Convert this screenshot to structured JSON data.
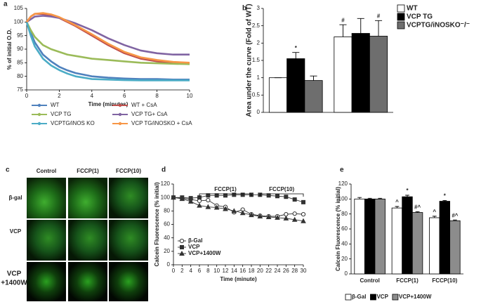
{
  "chart_data": [
    {
      "type": "line",
      "label": "a",
      "x_label": "Time (minutes)",
      "y_label": "% of initial O.D.",
      "x": [
        0,
        0.25,
        0.5,
        1,
        1.5,
        2,
        2.5,
        3,
        4,
        5,
        6,
        7,
        8,
        9,
        10
      ],
      "series": [
        {
          "name": "WT",
          "color": "#4f81bd",
          "values": [
            100,
            96,
            92.5,
            88,
            85.5,
            83.5,
            82.2,
            81.2,
            80,
            79.5,
            79.2,
            79,
            79,
            78.8,
            78.8
          ]
        },
        {
          "name": "WT + CsA",
          "color": "#c0504d",
          "values": [
            100,
            102,
            103,
            103,
            102.5,
            101.5,
            100,
            98.5,
            95,
            91.5,
            88.5,
            86.5,
            85.5,
            85,
            84.5
          ]
        },
        {
          "name": "VCP TG",
          "color": "#9bbb59",
          "values": [
            100,
            97,
            94.5,
            91.5,
            90,
            89,
            88,
            87.5,
            86.5,
            86,
            85.5,
            85,
            84.8,
            84.6,
            84.5
          ]
        },
        {
          "name": "VCP TG+ CsA",
          "color": "#8064a2",
          "values": [
            100,
            101,
            102,
            102.3,
            102,
            101.5,
            100.5,
            99.5,
            97,
            94,
            91.5,
            89.5,
            88.5,
            88,
            88
          ]
        },
        {
          "name": "VCPTG/iNOS KO",
          "color": "#4bacc6",
          "values": [
            100,
            95,
            91,
            86.5,
            84,
            82.3,
            81,
            80,
            79,
            78.8,
            78.6,
            78.5,
            78.5,
            78.5,
            78.5
          ]
        },
        {
          "name": "VCP TG/iNOSKO + CsA",
          "color": "#f79646",
          "values": [
            100,
            102,
            103,
            103.3,
            102.8,
            101.8,
            100.3,
            98.8,
            95.5,
            92,
            89,
            87,
            86,
            85.3,
            85
          ]
        }
      ],
      "xlim": [
        0,
        10
      ],
      "xticks": [
        0,
        2,
        4,
        6,
        8,
        10
      ],
      "ylim": [
        75,
        105
      ],
      "yticks": [
        75,
        80,
        85,
        90,
        95,
        100,
        105
      ],
      "legend": "bottom",
      "grid": false
    },
    {
      "type": "bar",
      "label": "b",
      "y_label": "Area under the curve (Fold of WT)",
      "categories": [
        null,
        null
      ],
      "series": [
        {
          "name": "WT",
          "color": "#ffffff",
          "values": [
            1,
            2.18
          ],
          "errors": [
            0,
            0.35
          ],
          "annotations": [
            null,
            "#"
          ]
        },
        {
          "name": "VCP TG",
          "color": "#000000",
          "values": [
            1.55,
            2.28
          ],
          "errors": [
            0.18,
            0.43
          ],
          "annotations": [
            "*",
            null
          ]
        },
        {
          "name": "VCPTG/iNOSKO⁻/⁻",
          "color": "#6e6e6e",
          "values": [
            0.92,
            2.2
          ],
          "errors": [
            0.13,
            0.45
          ],
          "annotations": [
            null,
            "#"
          ]
        }
      ],
      "ylim": [
        0,
        3
      ],
      "yticks": [
        0,
        0.5,
        1,
        1.5,
        2,
        2.5,
        3
      ],
      "legend": "top-right",
      "grid": false
    },
    {
      "type": "line",
      "label": "d",
      "x_label": "Time (minute)",
      "y_label": "Calcein Fluorescence (% initial)",
      "x": [
        0,
        2,
        4,
        6,
        8,
        10,
        12,
        14,
        16,
        18,
        20,
        22,
        24,
        26,
        28,
        30
      ],
      "series": [
        {
          "name": "β-Gal",
          "color": "#333333",
          "marker": "circle-open",
          "values": [
            100,
            99,
            97,
            95,
            96,
            88,
            86,
            78,
            82,
            75,
            73,
            72,
            72,
            75,
            76,
            75
          ]
        },
        {
          "name": "VCP",
          "color": "#333333",
          "marker": "square",
          "values": [
            100,
            100,
            99,
            100,
            103,
            103,
            103,
            104,
            104,
            104,
            104,
            103,
            102,
            101,
            97,
            93
          ]
        },
        {
          "name": "VCP+1400W",
          "color": "#333333",
          "marker": "triangle",
          "values": [
            100,
            98,
            94,
            88,
            86,
            85,
            83,
            80,
            77,
            74,
            72,
            71,
            70,
            69,
            67,
            65
          ]
        }
      ],
      "annotations": [
        {
          "text": "FCCP(1)",
          "x_range": [
            6,
            18
          ]
        },
        {
          "text": "FCCP(10)",
          "x_range": [
            20,
            30
          ]
        }
      ],
      "xlim": [
        0,
        30
      ],
      "xticks": [
        0,
        2,
        4,
        6,
        8,
        10,
        12,
        14,
        16,
        18,
        20,
        22,
        24,
        26,
        28,
        30
      ],
      "ylim": [
        0,
        120
      ],
      "yticks": [
        0,
        20,
        40,
        60,
        80,
        100,
        120
      ],
      "legend": "bottom-left",
      "grid": false
    },
    {
      "type": "bar",
      "label": "e",
      "y_label": "Calcein Fluorescence (% initial)",
      "categories": [
        "Control",
        "FCCP(1)",
        "FCCP(10)"
      ],
      "series": [
        {
          "name": "β-Gal",
          "color": "#ffffff",
          "values": [
            100,
            88,
            75
          ],
          "errors": [
            2,
            2,
            2
          ],
          "annotations": [
            null,
            "^",
            "^"
          ]
        },
        {
          "name": "VCP",
          "color": "#000000",
          "values": [
            100,
            103,
            97
          ],
          "errors": [
            1,
            2,
            1
          ],
          "annotations": [
            null,
            "*",
            "*"
          ]
        },
        {
          "name": "VCP+1400W",
          "color": "#8c8c8c",
          "values": [
            100,
            82,
            71
          ],
          "errors": [
            1,
            1,
            1
          ],
          "annotations": [
            null,
            "#^",
            "#^"
          ]
        }
      ],
      "ylim": [
        0,
        120
      ],
      "yticks": [
        0,
        20,
        40,
        60,
        80,
        100,
        120
      ],
      "legend": "bottom",
      "grid": false
    }
  ],
  "image_panel": {
    "label": "c",
    "columns": [
      "Control",
      "FCCP(1)",
      "FCCP(10)"
    ],
    "rows": [
      [
        "β-gal"
      ],
      [
        "VCP"
      ],
      [
        "VCP",
        "+1400W"
      ]
    ]
  }
}
